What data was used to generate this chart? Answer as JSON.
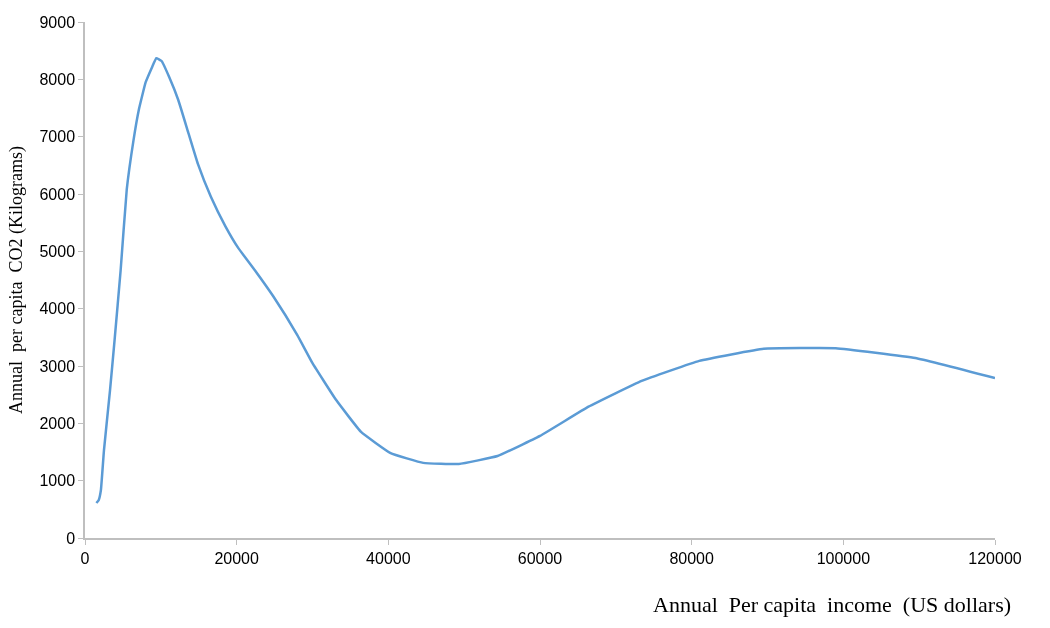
{
  "chart_data": {
    "type": "line",
    "xlabel": "Annual  Per capita  income  (US dollars)",
    "ylabel": "Annual  per capita  CO2 (Kilograms)",
    "x": [
      1500,
      1800,
      2100,
      2500,
      3300,
      3900,
      4700,
      5500,
      6400,
      7100,
      8000,
      8900,
      9400,
      10100,
      11100,
      12300,
      13600,
      14900,
      16600,
      18500,
      20200,
      22400,
      24800,
      28000,
      30000,
      33100,
      36400,
      40300,
      44600,
      49300,
      54400,
      60000,
      66400,
      73400,
      81000,
      89500,
      99000,
      109500,
      120000
    ],
    "series": [
      {
        "color": "#5b9bd5",
        "values": [
          610,
          660,
          840,
          1530,
          2580,
          3450,
          4670,
          6070,
          6940,
          7470,
          7950,
          8230,
          8370,
          8320,
          8040,
          7640,
          7080,
          6520,
          5950,
          5440,
          5060,
          4670,
          4220,
          3540,
          3050,
          2410,
          1850,
          1480,
          1310,
          1290,
          1430,
          1780,
          2290,
          2740,
          3090,
          3300,
          3310,
          3140,
          2790
        ]
      }
    ],
    "xlim": [
      0,
      120000
    ],
    "xticks": [
      0,
      20000,
      40000,
      60000,
      80000,
      100000,
      120000
    ],
    "ylim": [
      0,
      9000
    ],
    "yticks": [
      0,
      1000,
      2000,
      3000,
      4000,
      5000,
      6000,
      7000,
      8000,
      9000
    ],
    "legend": false,
    "marker": "none",
    "line_style": "solid"
  }
}
